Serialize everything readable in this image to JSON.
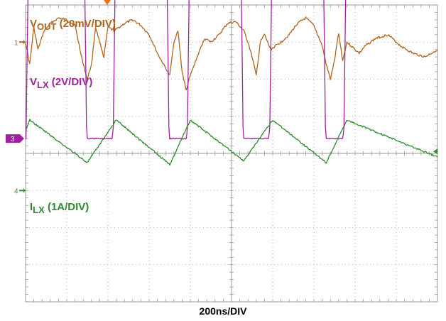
{
  "chart_data": {
    "type": "line",
    "title": "",
    "xlabel": "200ns/DIV",
    "ylabel": "",
    "x_units": "ns",
    "xlim": [
      0,
      2000
    ],
    "div_x": 10,
    "div_y": 8,
    "grid": true,
    "series": [
      {
        "name": "VOUT (20mV/DIV)",
        "name_main": "V",
        "name_sub": "OUT",
        "name_rest": " (20mV/DIV)",
        "channel_marker": "1",
        "color": "#b0641e",
        "units": "mV",
        "offset_divs": 1,
        "x": [
          0,
          20,
          40,
          60,
          90,
          120,
          160,
          200,
          240,
          280,
          300,
          320,
          340,
          360,
          380,
          400,
          430,
          480,
          520,
          560,
          600,
          640,
          680,
          700,
          720,
          740,
          760,
          780,
          800,
          820,
          840,
          870,
          900,
          940,
          980,
          1020,
          1060,
          1080,
          1100,
          1120,
          1140,
          1160,
          1190,
          1240,
          1280,
          1320,
          1360,
          1400,
          1440,
          1460,
          1480,
          1500,
          1520,
          1540,
          1560,
          1580,
          1600,
          1620,
          1650,
          1700,
          1760,
          1820,
          1880,
          1940,
          2000
        ],
        "y": [
          0,
          -12,
          8,
          -4,
          6,
          10,
          13,
          12,
          9,
          -12,
          -20,
          -12,
          8,
          0,
          -8,
          8,
          6,
          10,
          12,
          9,
          4,
          -6,
          -14,
          -18,
          0,
          6,
          -16,
          -26,
          -18,
          -12,
          -6,
          2,
          0,
          4,
          10,
          11,
          6,
          0,
          -8,
          -18,
          0,
          4,
          -4,
          0,
          4,
          10,
          13,
          9,
          -2,
          -12,
          -20,
          -10,
          5,
          -10,
          0,
          -2,
          -4,
          -6,
          -2,
          2,
          4,
          -2,
          -6,
          -8,
          -4
        ]
      },
      {
        "name": "VLX (2V/DIV)",
        "name_main": "V",
        "name_sub": "LX",
        "name_rest": " (2V/DIV)",
        "channel_marker": "3",
        "color": "#a020a0",
        "units": "V",
        "offset_divs": 3.6,
        "x": [
          0,
          2,
          14,
          18,
          280,
          286,
          296,
          300,
          420,
          426,
          436,
          440,
          680,
          686,
          696,
          700,
          780,
          786,
          796,
          800,
          1040,
          1046,
          1056,
          1060,
          1180,
          1186,
          1196,
          1200,
          1440,
          1446,
          1456,
          1460,
          1540,
          1546,
          1556,
          1560,
          2000
        ],
        "y": [
          0,
          0,
          9.4,
          10,
          10,
          9.4,
          0.6,
          0,
          0,
          0.6,
          9.4,
          10,
          10,
          9.4,
          0.6,
          0,
          0,
          0.6,
          9.4,
          10,
          10,
          9.4,
          0.6,
          0,
          0,
          0.6,
          9.4,
          10,
          10,
          9.4,
          0.6,
          0,
          0,
          0.6,
          9.4,
          10,
          10
        ]
      },
      {
        "name": "ILX (1A/DIV)",
        "name_main": "I",
        "name_sub": "LX",
        "name_rest": " (1A/DIV)",
        "channel_marker": "4",
        "color": "#2e8b2e",
        "units": "A",
        "offset_divs": 5,
        "x": [
          0,
          20,
          300,
          440,
          700,
          800,
          1060,
          1200,
          1460,
          1560,
          2000
        ],
        "y": [
          1.6,
          1.9,
          0.75,
          1.9,
          0.7,
          1.9,
          0.8,
          1.9,
          0.75,
          1.9,
          0.9
        ]
      }
    ]
  }
}
